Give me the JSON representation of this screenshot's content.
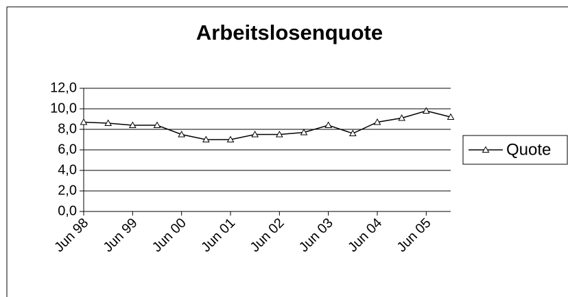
{
  "chart_data": {
    "type": "line",
    "title": "Arbeitslosenquote",
    "categories": [
      "Jun 98",
      null,
      "Jun 99",
      null,
      "Jun 00",
      null,
      "Jun 01",
      null,
      "Jun 02",
      null,
      "Jun 03",
      null,
      "Jun 04",
      null,
      "Jun 05",
      null
    ],
    "series": [
      {
        "name": "Quote",
        "color": "#000000",
        "values": [
          8.7,
          8.6,
          8.4,
          8.4,
          7.5,
          7.0,
          7.0,
          7.5,
          7.5,
          7.7,
          8.4,
          7.6,
          8.7,
          9.1,
          9.8,
          9.2
        ]
      }
    ],
    "ylim": [
      0,
      12
    ],
    "yticks": [
      {
        "value": 0,
        "label": "0,0"
      },
      {
        "value": 2,
        "label": "2,0"
      },
      {
        "value": 4,
        "label": "4,0"
      },
      {
        "value": 6,
        "label": "6,0"
      },
      {
        "value": 8,
        "label": "8,0"
      },
      {
        "value": 10,
        "label": "10,0"
      },
      {
        "value": 12,
        "label": "12,0"
      }
    ],
    "grid": true,
    "legend": "right"
  }
}
